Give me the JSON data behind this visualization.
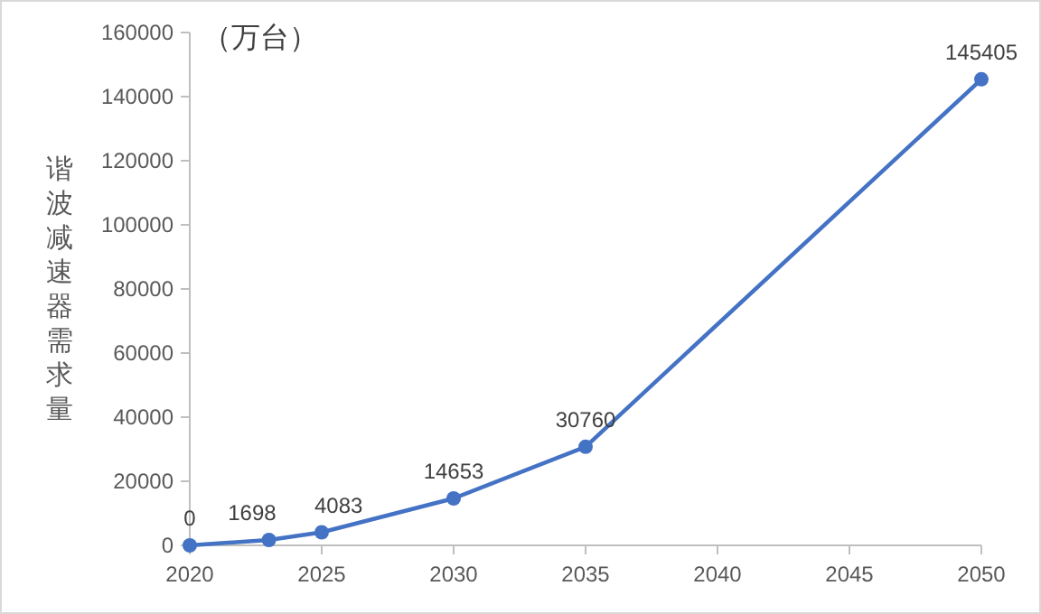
{
  "chart_data": {
    "type": "line",
    "ylabel": "谐波减速器需求量",
    "annotations": [
      "（万台）"
    ],
    "x": [
      2020,
      2023,
      2025,
      2030,
      2035,
      2050
    ],
    "series": [
      {
        "color": "#4472c4",
        "values": [
          0,
          1698,
          4083,
          14653,
          30760,
          145405
        ]
      }
    ],
    "xlim": [
      2020,
      2050
    ],
    "xticks": [
      2020,
      2025,
      2030,
      2035,
      2040,
      2045,
      2050
    ],
    "ylim": [
      0,
      160000
    ],
    "yticks": [
      0,
      20000,
      40000,
      60000,
      80000,
      100000,
      120000,
      140000,
      160000
    ],
    "marker": "circle",
    "line_style": "solid",
    "data_labels": true,
    "grid": false
  }
}
